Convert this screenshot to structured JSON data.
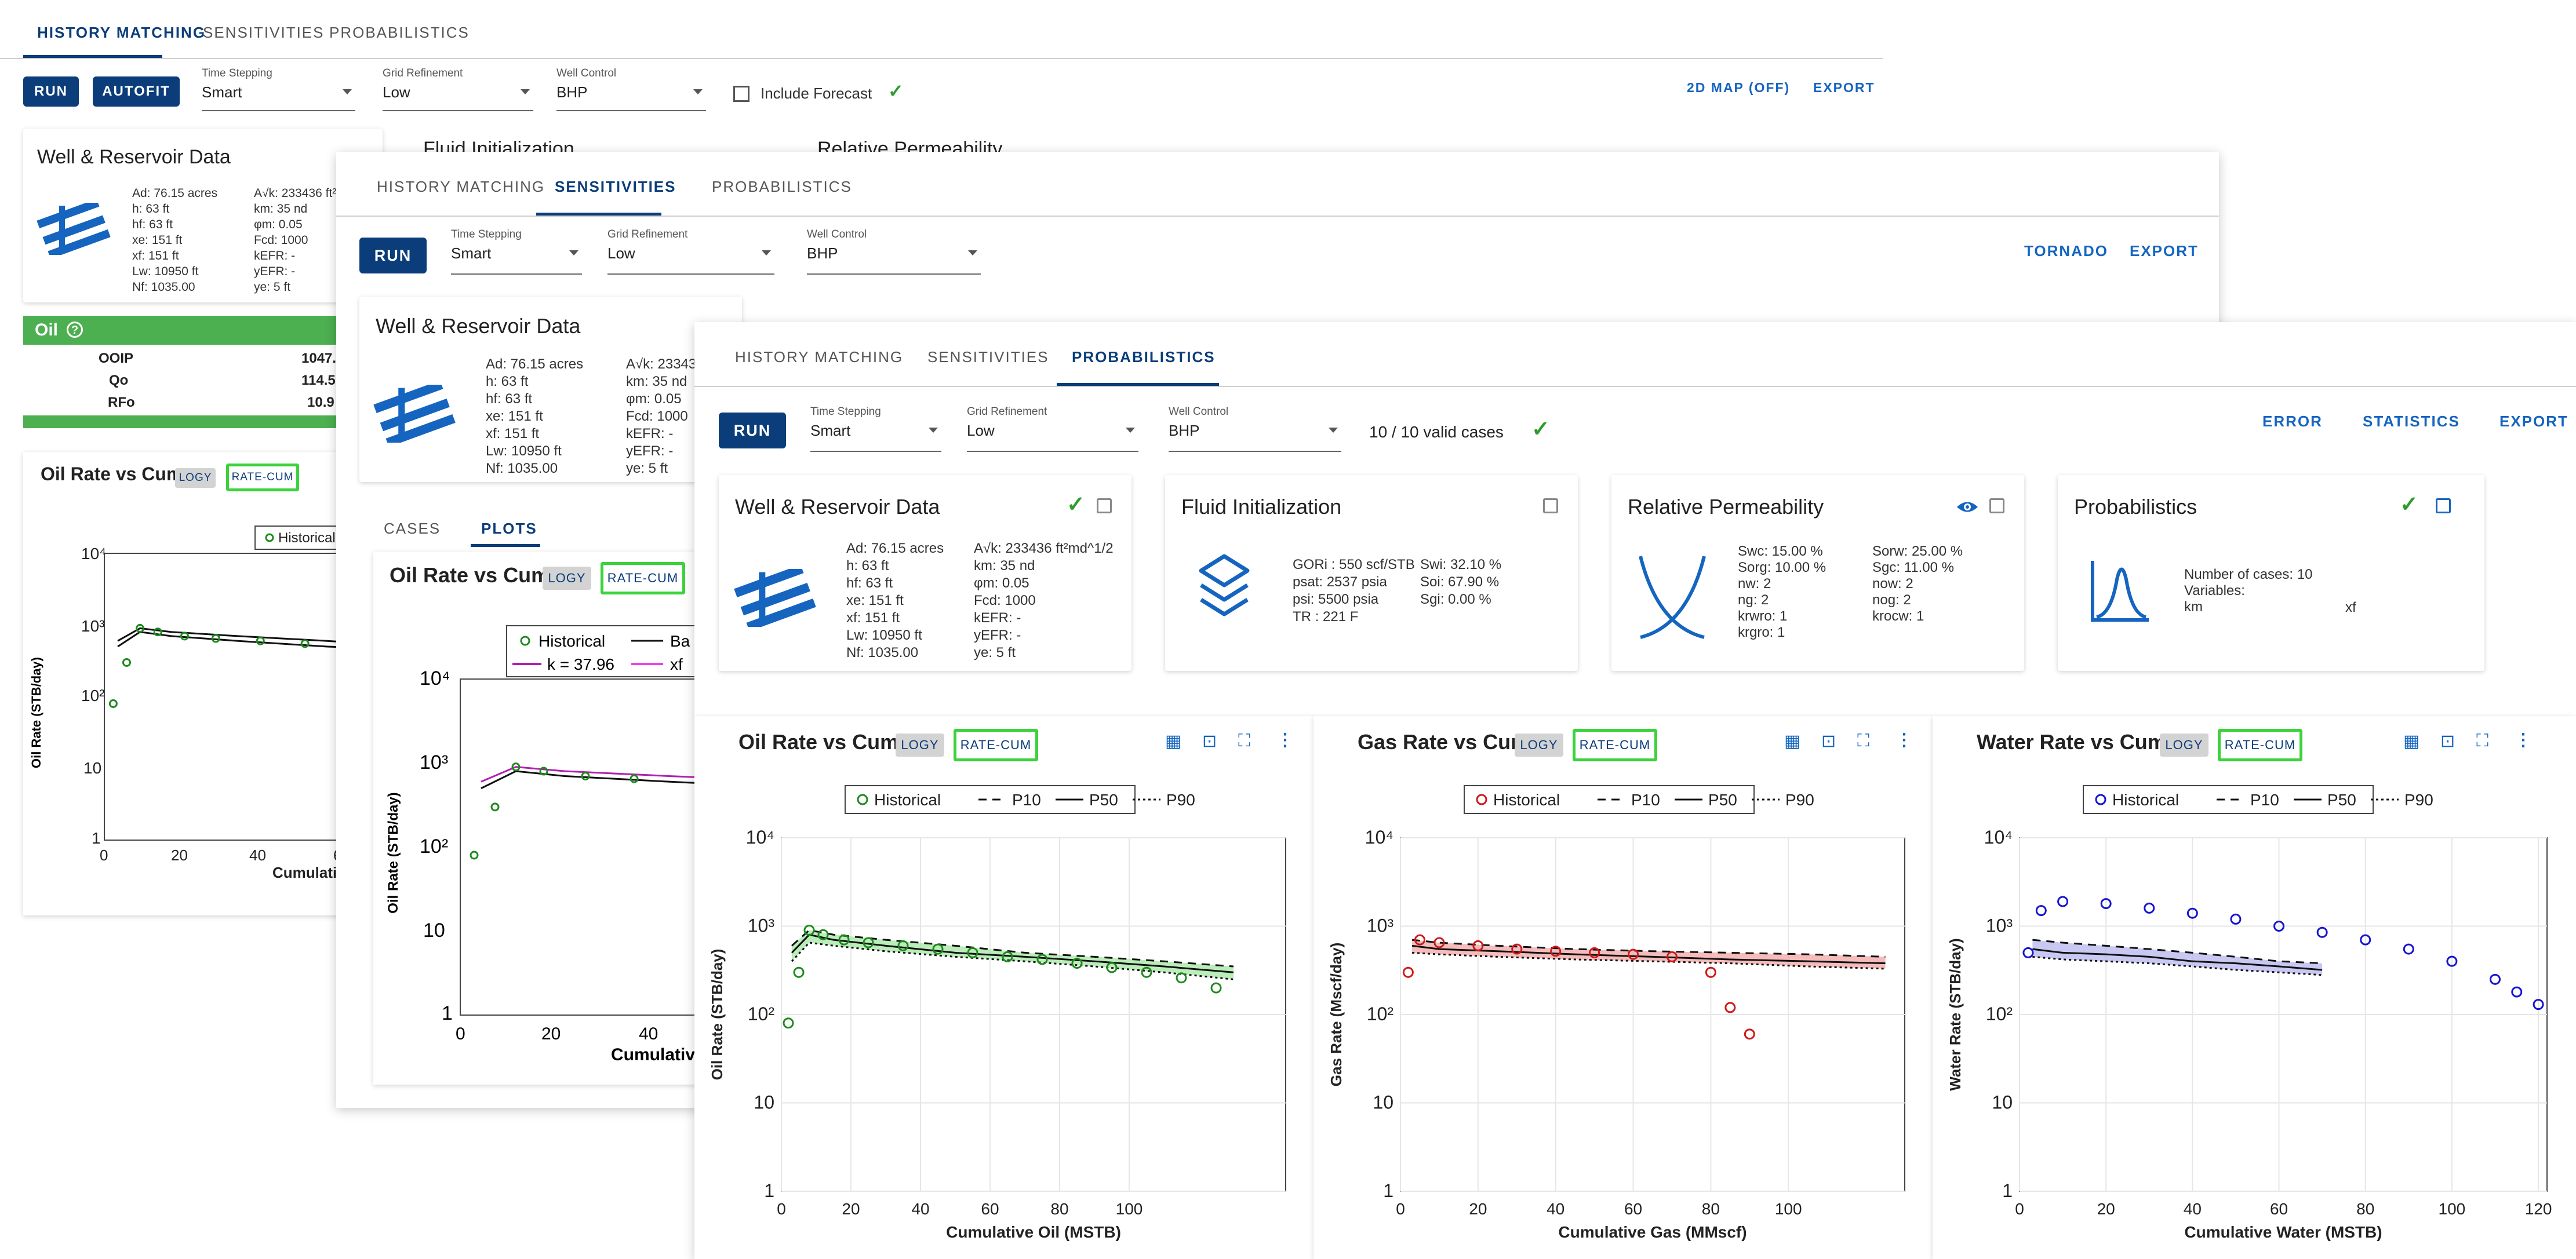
{
  "tabs": [
    "HISTORY MATCHING",
    "SENSITIVITIES",
    "PROBABILISTICS"
  ],
  "controls": {
    "run": "RUN",
    "autofit": "AUTOFIT",
    "time_stepping": {
      "label": "Time Stepping",
      "value": "Smart"
    },
    "grid_refinement": {
      "label": "Grid Refinement",
      "value": "Low"
    },
    "well_control": {
      "label": "Well Control",
      "value": "BHP"
    },
    "include_forecast": "Include Forecast"
  },
  "panel1": {
    "right_links": [
      "2D MAP (OFF)",
      "EXPORT"
    ],
    "card_titles": [
      "Well & Reservoir Data",
      "Fluid Initialization",
      "Relative Permeability"
    ],
    "oil_bar": {
      "title": "Oil",
      "rows": [
        [
          "OOIP",
          "1047."
        ],
        [
          "Qo",
          "114.5"
        ],
        [
          "RFo",
          "10.9"
        ]
      ]
    },
    "plot_title": "Oil Rate vs Cum",
    "legend": "Historical",
    "ylabel": "Oil Rate (STB/day)",
    "xlabel": "Cumulative",
    "xticks": [
      "0",
      "20",
      "40",
      "6"
    ]
  },
  "panel2": {
    "right_links": [
      "TORNADO",
      "EXPORT"
    ],
    "sub_tabs": [
      "CASES",
      "PLOTS"
    ],
    "plot_title": "Oil Rate vs Cum",
    "legend": [
      "Historical",
      "Ba",
      "k = 37.96",
      "xf"
    ],
    "ylabel": "Oil Rate (STB/day)",
    "xlabel": "Cumulative",
    "xticks": [
      "0",
      "20",
      "40"
    ]
  },
  "panel3": {
    "valid_cases": "10 / 10 valid cases",
    "right_links": [
      "ERROR",
      "STATISTICS",
      "EXPORT"
    ],
    "cards": {
      "well": {
        "title": "Well & Reservoir Data"
      },
      "fluid": {
        "title": "Fluid Initialization",
        "left": [
          "GORi :  550 scf/STB",
          "psat:  2537 psia",
          "psi:   5500 psia",
          "TR :  221 F"
        ],
        "right": [
          "",
          "Swi:  32.10 %",
          "Soi:  67.90 %",
          "Sgi:  0.00 %"
        ]
      },
      "relperm": {
        "title": "Relative Permeability",
        "left": [
          "Swc:  15.00 %",
          "Sorg:  10.00 %",
          "nw:  2",
          "ng:  2",
          "krwro:  1",
          "krgro:  1"
        ],
        "right": [
          "Sorw:  25.00 %",
          "Sgc:  11.00 %",
          "now:  2",
          "nog:  2",
          "krocw:  1",
          ""
        ]
      },
      "prob": {
        "title": "Probabilistics",
        "lines": [
          "Number of cases: 10",
          "Variables:",
          "km"
        ],
        "var2": "xf"
      }
    },
    "well_params_left": [
      "Ad:  76.15 acres",
      "h:  63 ft",
      "hf:  63 ft",
      "xe:  151 ft",
      "xf:  151 ft",
      "Lw:  10950 ft",
      "Nf:  1035.00"
    ],
    "well_params_right": [
      "A√k:  233436 ft²md^1/2",
      "km:  35 nd",
      "φm:  0.05",
      "Fcd:  1000",
      "kEFR:  -",
      "yEFR:  -",
      "ye:  5 ft"
    ]
  },
  "chip_labels": {
    "logy": "LOGY",
    "ratecum": "RATE-CUM"
  },
  "colors": {
    "primary": "#0b3d7a",
    "link": "#1565c0",
    "oil": "#1e8a1e",
    "gas": "#d01818",
    "water": "#1515d0",
    "oil_band": "#9ee59e",
    "gas_band": "#f2a0a0",
    "water_band": "#b0b0ee"
  },
  "chart_data": [
    {
      "type": "line",
      "title": "Oil Rate vs Cum",
      "xlabel": "Cumulative Oil (MSTB)",
      "ylabel": "Oil Rate (STB/day)",
      "xlim": [
        0,
        145
      ],
      "ylim_log10": [
        0,
        4
      ],
      "y_scale": "log",
      "xticks": [
        0,
        20,
        40,
        60,
        80,
        100
      ],
      "series": [
        {
          "name": "Historical",
          "x": [
            2,
            5,
            8,
            12,
            18,
            25,
            35,
            45,
            55,
            65,
            75,
            85,
            95,
            105,
            115,
            125
          ],
          "y": [
            80,
            300,
            900,
            800,
            700,
            650,
            600,
            550,
            500,
            450,
            420,
            380,
            340,
            300,
            260,
            200
          ]
        },
        {
          "name": "P10",
          "x": [
            3,
            8,
            15,
            30,
            50,
            70,
            90,
            110,
            130
          ],
          "y": [
            600,
            900,
            800,
            700,
            600,
            500,
            450,
            400,
            350
          ]
        },
        {
          "name": "P50",
          "x": [
            3,
            8,
            15,
            30,
            50,
            70,
            90,
            110,
            130
          ],
          "y": [
            500,
            800,
            700,
            600,
            500,
            450,
            400,
            350,
            300
          ]
        },
        {
          "name": "P90",
          "x": [
            3,
            8,
            15,
            30,
            50,
            70,
            90,
            110,
            130
          ],
          "y": [
            400,
            650,
            600,
            520,
            450,
            400,
            350,
            300,
            250
          ]
        }
      ]
    },
    {
      "type": "line",
      "title": "Gas Rate vs Cum",
      "xlabel": "Cumulative Gas (MMscf)",
      "ylabel": "Gas Rate (Mscf/day)",
      "xlim": [
        0,
        130
      ],
      "ylim_log10": [
        0,
        4
      ],
      "y_scale": "log",
      "xticks": [
        0,
        20,
        40,
        60,
        80,
        100
      ],
      "series": [
        {
          "name": "Historical",
          "x": [
            2,
            5,
            10,
            20,
            30,
            40,
            50,
            60,
            70,
            80,
            85,
            90
          ],
          "y": [
            300,
            700,
            650,
            600,
            550,
            520,
            500,
            480,
            450,
            300,
            120,
            60
          ]
        },
        {
          "name": "P10",
          "x": [
            3,
            10,
            25,
            45,
            65,
            85,
            105,
            125
          ],
          "y": [
            700,
            650,
            600,
            550,
            520,
            500,
            480,
            450
          ]
        },
        {
          "name": "P50",
          "x": [
            3,
            10,
            25,
            45,
            65,
            85,
            105,
            125
          ],
          "y": [
            600,
            550,
            520,
            480,
            450,
            420,
            400,
            380
          ]
        },
        {
          "name": "P90",
          "x": [
            3,
            10,
            25,
            45,
            65,
            85,
            105,
            125
          ],
          "y": [
            500,
            480,
            450,
            420,
            400,
            380,
            350,
            330
          ]
        }
      ]
    },
    {
      "type": "line",
      "title": "Water Rate vs Cum",
      "xlabel": "Cumulative Water (MSTB)",
      "ylabel": "Water Rate (STB/day)",
      "xlim": [
        0,
        122
      ],
      "ylim_log10": [
        0,
        4
      ],
      "y_scale": "log",
      "xticks": [
        0,
        20,
        40,
        60,
        80,
        100,
        120
      ],
      "series": [
        {
          "name": "Historical",
          "x": [
            2,
            5,
            10,
            20,
            30,
            40,
            50,
            60,
            70,
            80,
            90,
            100,
            110,
            115,
            120
          ],
          "y": [
            500,
            1500,
            1900,
            1800,
            1600,
            1400,
            1200,
            1000,
            850,
            700,
            550,
            400,
            250,
            180,
            130
          ]
        },
        {
          "name": "P10",
          "x": [
            3,
            10,
            20,
            30,
            40,
            50,
            60,
            70
          ],
          "y": [
            700,
            650,
            600,
            550,
            500,
            450,
            400,
            380
          ]
        },
        {
          "name": "P50",
          "x": [
            3,
            10,
            20,
            30,
            40,
            50,
            60,
            70
          ],
          "y": [
            550,
            500,
            480,
            450,
            400,
            380,
            350,
            320
          ]
        },
        {
          "name": "P90",
          "x": [
            3,
            10,
            20,
            30,
            40,
            50,
            60,
            70
          ],
          "y": [
            450,
            420,
            400,
            380,
            350,
            320,
            300,
            280
          ]
        }
      ]
    }
  ]
}
